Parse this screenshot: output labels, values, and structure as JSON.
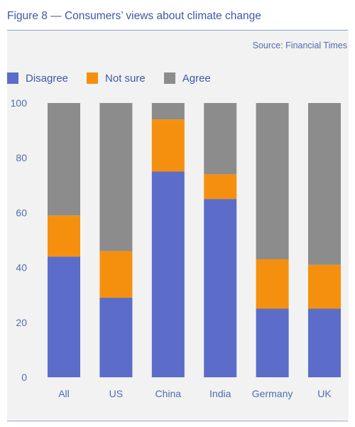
{
  "figure": {
    "title": "Figure 8 — Consumers’ views about climate change",
    "source": "Source: Financial Times"
  },
  "colors": {
    "disagree": "#5b6dc8",
    "not_sure": "#f5900f",
    "agree": "#8c8c8c",
    "text": "#4f6daf",
    "panel": "#f2f2f2"
  },
  "chart_data": {
    "type": "bar",
    "stacked": true,
    "categories": [
      "All",
      "US",
      "China",
      "India",
      "Germany",
      "UK"
    ],
    "series": [
      {
        "name": "Disagree",
        "values": [
          44,
          29,
          75,
          65,
          25,
          25
        ]
      },
      {
        "name": "Not sure",
        "values": [
          15,
          17,
          19,
          9,
          18,
          16
        ]
      },
      {
        "name": "Agree",
        "values": [
          41,
          54,
          6,
          26,
          57,
          59
        ]
      }
    ],
    "ylim": [
      0,
      100
    ],
    "yticks": [
      0,
      20,
      40,
      60,
      80,
      100
    ],
    "title": "",
    "xlabel": "",
    "ylabel": "",
    "grid": false,
    "legend": "top-left"
  }
}
